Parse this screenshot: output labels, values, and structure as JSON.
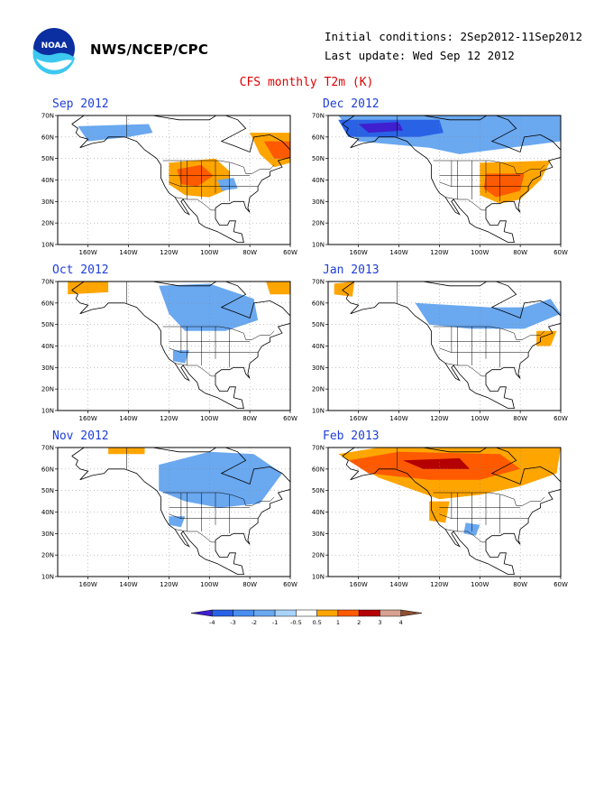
{
  "header": {
    "agency": "NWS/NCEP/CPC",
    "initial_conditions": "Initial conditions: 2Sep2012-11Sep2012",
    "last_update": "Last update: Wed Sep 12 2012",
    "title": "CFS monthly T2m (K)",
    "logo_text": "NOAA"
  },
  "axes": {
    "lat_labels": [
      "70N",
      "60N",
      "50N",
      "40N",
      "30N",
      "20N",
      "10N"
    ],
    "lon_labels": [
      "160W",
      "140W",
      "120W",
      "100W",
      "80W",
      "60W"
    ]
  },
  "panels": [
    {
      "title": "Sep 2012",
      "col": 0,
      "row": 0,
      "anomalies": [
        {
          "color": "#6aa8f0",
          "pts": [
            [
              -165,
              65
            ],
            [
              -130,
              66
            ],
            [
              -128,
              62
            ],
            [
              -140,
              60
            ],
            [
              -160,
              58
            ]
          ]
        },
        {
          "color": "#ffa500",
          "pts": [
            [
              -120,
              48
            ],
            [
              -97,
              50
            ],
            [
              -90,
              44
            ],
            [
              -90,
              36
            ],
            [
              -100,
              32
            ],
            [
              -112,
              33
            ],
            [
              -120,
              38
            ]
          ]
        },
        {
          "color": "#ff5a00",
          "pts": [
            [
              -116,
              45
            ],
            [
              -104,
              47
            ],
            [
              -98,
              42
            ],
            [
              -106,
              37
            ],
            [
              -114,
              38
            ]
          ]
        },
        {
          "color": "#ffa500",
          "pts": [
            [
              -80,
              62
            ],
            [
              -60,
              62
            ],
            [
              -60,
              48
            ],
            [
              -68,
              46
            ],
            [
              -75,
              52
            ]
          ]
        },
        {
          "color": "#ff5a00",
          "pts": [
            [
              -73,
              58
            ],
            [
              -60,
              58
            ],
            [
              -60,
              50
            ],
            [
              -68,
              50
            ]
          ]
        },
        {
          "color": "#6aa8f0",
          "pts": [
            [
              -96,
              40
            ],
            [
              -88,
              41
            ],
            [
              -86,
              36
            ],
            [
              -94,
              35
            ]
          ]
        }
      ]
    },
    {
      "title": "Dec 2012",
      "col": 1,
      "row": 0,
      "anomalies": [
        {
          "color": "#6aa8f0",
          "pts": [
            [
              -170,
              70
            ],
            [
              -60,
              70
            ],
            [
              -60,
              58
            ],
            [
              -85,
              55
            ],
            [
              -110,
              52
            ],
            [
              -125,
              55
            ],
            [
              -160,
              58
            ]
          ]
        },
        {
          "color": "#2a62e6",
          "pts": [
            [
              -170,
              68
            ],
            [
              -120,
              68
            ],
            [
              -118,
              62
            ],
            [
              -130,
              60
            ],
            [
              -165,
              60
            ]
          ]
        },
        {
          "color": "#3f1fcf",
          "pts": [
            [
              -160,
              66
            ],
            [
              -140,
              67
            ],
            [
              -138,
              63
            ],
            [
              -155,
              62
            ]
          ]
        },
        {
          "color": "#ffa500",
          "pts": [
            [
              -100,
              48
            ],
            [
              -65,
              49
            ],
            [
              -70,
              40
            ],
            [
              -80,
              31
            ],
            [
              -90,
              29
            ],
            [
              -100,
              33
            ]
          ]
        },
        {
          "color": "#ff5a00",
          "pts": [
            [
              -97,
              43
            ],
            [
              -78,
              43
            ],
            [
              -80,
              35
            ],
            [
              -92,
              32
            ],
            [
              -98,
              36
            ]
          ]
        }
      ]
    },
    {
      "title": "Oct 2012",
      "col": 0,
      "row": 1,
      "anomalies": [
        {
          "color": "#ffa500",
          "pts": [
            [
              -170,
              70
            ],
            [
              -150,
              70
            ],
            [
              -150,
              65
            ],
            [
              -170,
              64
            ]
          ]
        },
        {
          "color": "#6aa8f0",
          "pts": [
            [
              -125,
              68
            ],
            [
              -100,
              69
            ],
            [
              -78,
              62
            ],
            [
              -76,
              52
            ],
            [
              -92,
              47
            ],
            [
              -112,
              47
            ],
            [
              -120,
              55
            ]
          ]
        },
        {
          "color": "#ffa500",
          "pts": [
            [
              -72,
              70
            ],
            [
              -60,
              70
            ],
            [
              -60,
              64
            ],
            [
              -70,
              64
            ]
          ]
        },
        {
          "color": "#6aa8f0",
          "pts": [
            [
              -118,
              38
            ],
            [
              -110,
              38
            ],
            [
              -112,
              32
            ],
            [
              -118,
              33
            ]
          ]
        }
      ]
    },
    {
      "title": "Jan 2013",
      "col": 1,
      "row": 1,
      "anomalies": [
        {
          "color": "#ffa500",
          "pts": [
            [
              -172,
              69
            ],
            [
              -162,
              70
            ],
            [
              -163,
              63
            ],
            [
              -172,
              64
            ]
          ]
        },
        {
          "color": "#6aa8f0",
          "pts": [
            [
              -132,
              60
            ],
            [
              -95,
              58
            ],
            [
              -78,
              58
            ],
            [
              -65,
              62
            ],
            [
              -60,
              55
            ],
            [
              -78,
              48
            ],
            [
              -105,
              48
            ],
            [
              -125,
              50
            ]
          ]
        },
        {
          "color": "#ffa500",
          "pts": [
            [
              -72,
              47
            ],
            [
              -62,
              47
            ],
            [
              -65,
              40
            ],
            [
              -72,
              40
            ]
          ]
        }
      ]
    },
    {
      "title": "Nov 2012",
      "col": 0,
      "row": 2,
      "anomalies": [
        {
          "color": "#6aa8f0",
          "pts": [
            [
              -125,
              62
            ],
            [
              -100,
              68
            ],
            [
              -78,
              67
            ],
            [
              -64,
              58
            ],
            [
              -75,
              44
            ],
            [
              -95,
              42
            ],
            [
              -112,
              45
            ],
            [
              -125,
              50
            ]
          ]
        },
        {
          "color": "#ffa500",
          "pts": [
            [
              -150,
              70
            ],
            [
              -132,
              70
            ],
            [
              -132,
              67
            ],
            [
              -150,
              67
            ]
          ]
        },
        {
          "color": "#6aa8f0",
          "pts": [
            [
              -120,
              38
            ],
            [
              -112,
              38
            ],
            [
              -114,
              33
            ],
            [
              -120,
              34
            ]
          ]
        }
      ]
    },
    {
      "title": "Feb 2013",
      "col": 1,
      "row": 2,
      "anomalies": [
        {
          "color": "#ffa500",
          "pts": [
            [
              -170,
              67
            ],
            [
              -150,
              70
            ],
            [
              -60,
              70
            ],
            [
              -62,
              58
            ],
            [
              -80,
              52
            ],
            [
              -100,
              48
            ],
            [
              -120,
              46
            ],
            [
              -150,
              56
            ]
          ]
        },
        {
          "color": "#ff5a00",
          "pts": [
            [
              -165,
              64
            ],
            [
              -140,
              68
            ],
            [
              -90,
              67
            ],
            [
              -80,
              60
            ],
            [
              -100,
              55
            ],
            [
              -125,
              55
            ],
            [
              -155,
              58
            ]
          ]
        },
        {
          "color": "#b40000",
          "pts": [
            [
              -138,
              64
            ],
            [
              -110,
              65
            ],
            [
              -105,
              60
            ],
            [
              -128,
              60
            ]
          ]
        },
        {
          "color": "#ffa500",
          "pts": [
            [
              -125,
              45
            ],
            [
              -115,
              45
            ],
            [
              -117,
              35
            ],
            [
              -125,
              36
            ]
          ]
        },
        {
          "color": "#6aa8f0",
          "pts": [
            [
              -107,
              35
            ],
            [
              -100,
              34
            ],
            [
              -102,
              29
            ],
            [
              -108,
              30
            ]
          ]
        }
      ]
    }
  ],
  "colorbar": {
    "labels": [
      "-4",
      "-3",
      "-2",
      "-1",
      "-0.5",
      "0.5",
      "1",
      "2",
      "3",
      "4"
    ],
    "colors": [
      "#3f1fcf",
      "#2a62e6",
      "#4a8ef0",
      "#6aa8f0",
      "#a8d3ff",
      "#ffffff",
      "#ffa500",
      "#ff5a00",
      "#b40000",
      "#d8a090",
      "#905030"
    ]
  }
}
